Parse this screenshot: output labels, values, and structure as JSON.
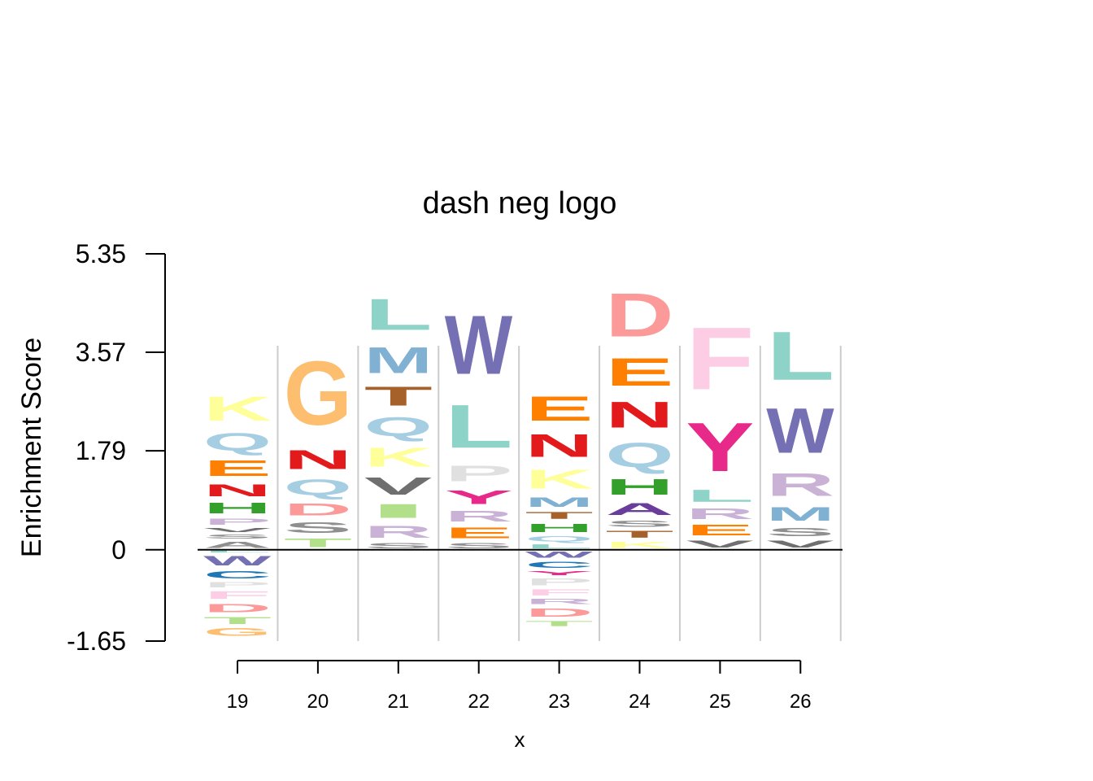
{
  "chart_data": {
    "type": "sequence-logo",
    "title": "dash neg logo",
    "xlabel": "x",
    "ylabel": "Enrichment Score",
    "ylim": [
      -1.65,
      5.35
    ],
    "yticks": [
      "5.35",
      "3.57",
      "1.79",
      "0",
      "-1.65"
    ],
    "ytick_values": [
      5.35,
      3.57,
      1.79,
      0,
      -1.65
    ],
    "positions": [
      {
        "x": "19",
        "positive": [
          {
            "letter": "A",
            "height": 0.18,
            "color": "#8f8f8f"
          },
          {
            "letter": "S",
            "height": 0.12,
            "color": "#8f8f8f"
          },
          {
            "letter": "V",
            "height": 0.12,
            "color": "#6f6f6f"
          },
          {
            "letter": "P",
            "height": 0.18,
            "color": "#cab2d6"
          },
          {
            "letter": "H",
            "height": 0.3,
            "color": "#33a02c"
          },
          {
            "letter": "N",
            "height": 0.35,
            "color": "#e31a1c"
          },
          {
            "letter": "E",
            "height": 0.45,
            "color": "#ff7f00"
          },
          {
            "letter": "Q",
            "height": 0.5,
            "color": "#a6cee3"
          },
          {
            "letter": "K",
            "height": 0.7,
            "color": "#ffff99"
          }
        ],
        "negative": [
          {
            "letter": "L",
            "height": 0.06,
            "color": "#8dd3c7"
          },
          {
            "letter": "W",
            "height": 0.28,
            "color": "#7570b3"
          },
          {
            "letter": "C",
            "height": 0.22,
            "color": "#1f78b4"
          },
          {
            "letter": "P",
            "height": 0.15,
            "color": "#e0e0e0"
          },
          {
            "letter": "F",
            "height": 0.22,
            "color": "#fccde5"
          },
          {
            "letter": "D",
            "height": 0.25,
            "color": "#fb9a99"
          },
          {
            "letter": "T",
            "height": 0.2,
            "color": "#b2df8a"
          },
          {
            "letter": "G",
            "height": 0.22,
            "color": "#fdbf6f"
          }
        ]
      },
      {
        "x": "20",
        "positive": [
          {
            "letter": "T",
            "height": 0.25,
            "color": "#b2df8a"
          },
          {
            "letter": "S",
            "height": 0.3,
            "color": "#8f8f8f"
          },
          {
            "letter": "D",
            "height": 0.35,
            "color": "#fb9a99"
          },
          {
            "letter": "Q",
            "height": 0.45,
            "color": "#a6cee3"
          },
          {
            "letter": "N",
            "height": 0.55,
            "color": "#e31a1c"
          },
          {
            "letter": "G",
            "height": 1.85,
            "color": "#fdbf6f"
          }
        ],
        "negative": []
      },
      {
        "x": "21",
        "positive": [
          {
            "letter": "S",
            "height": 0.15,
            "color": "#8f8f8f"
          },
          {
            "letter": "R",
            "height": 0.35,
            "color": "#cab2d6"
          },
          {
            "letter": "I",
            "height": 0.4,
            "color": "#b2df8a"
          },
          {
            "letter": "V",
            "height": 0.5,
            "color": "#6f6f6f"
          },
          {
            "letter": "K",
            "height": 0.55,
            "color": "#ffff99"
          },
          {
            "letter": "Q",
            "height": 0.55,
            "color": "#a6cee3"
          },
          {
            "letter": "T",
            "height": 0.55,
            "color": "#a6612a"
          },
          {
            "letter": "M",
            "height": 0.75,
            "color": "#80b1d3"
          },
          {
            "letter": "L",
            "height": 0.9,
            "color": "#8dd3c7"
          }
        ],
        "negative": []
      },
      {
        "x": "22",
        "positive": [
          {
            "letter": "S",
            "height": 0.15,
            "color": "#8f8f8f"
          },
          {
            "letter": "E",
            "height": 0.3,
            "color": "#ff7f00"
          },
          {
            "letter": "R",
            "height": 0.3,
            "color": "#cab2d6"
          },
          {
            "letter": "Y",
            "height": 0.4,
            "color": "#e7298a"
          },
          {
            "letter": "P",
            "height": 0.45,
            "color": "#e0e0e0"
          },
          {
            "letter": "L",
            "height": 1.25,
            "color": "#8dd3c7"
          },
          {
            "letter": "W",
            "height": 1.7,
            "color": "#7570b3"
          }
        ],
        "negative": []
      },
      {
        "x": "23",
        "positive": [
          {
            "letter": "L",
            "height": 0.12,
            "color": "#8dd3c7"
          },
          {
            "letter": "Q",
            "height": 0.15,
            "color": "#a6cee3"
          },
          {
            "letter": "H",
            "height": 0.25,
            "color": "#33a02c"
          },
          {
            "letter": "T",
            "height": 0.2,
            "color": "#a6612a"
          },
          {
            "letter": "M",
            "height": 0.28,
            "color": "#80b1d3"
          },
          {
            "letter": "K",
            "height": 0.55,
            "color": "#ffff99"
          },
          {
            "letter": "N",
            "height": 0.65,
            "color": "#e31a1c"
          },
          {
            "letter": "E",
            "height": 0.7,
            "color": "#ff7f00"
          }
        ],
        "negative": [
          {
            "letter": "W",
            "height": 0.18,
            "color": "#7570b3"
          },
          {
            "letter": "C",
            "height": 0.18,
            "color": "#1f78b4"
          },
          {
            "letter": "Y",
            "height": 0.12,
            "color": "#e7298a"
          },
          {
            "letter": "P",
            "height": 0.2,
            "color": "#e0e0e0"
          },
          {
            "letter": "F",
            "height": 0.18,
            "color": "#fccde5"
          },
          {
            "letter": "R",
            "height": 0.15,
            "color": "#cab2d6"
          },
          {
            "letter": "D",
            "height": 0.25,
            "color": "#fb9a99"
          },
          {
            "letter": "T",
            "height": 0.15,
            "color": "#b2df8a"
          }
        ]
      },
      {
        "x": "24",
        "positive": [
          {
            "letter": "K",
            "height": 0.18,
            "color": "#ffff99"
          },
          {
            "letter": "T",
            "height": 0.2,
            "color": "#a6612a"
          },
          {
            "letter": "S",
            "height": 0.18,
            "color": "#8f8f8f"
          },
          {
            "letter": "A",
            "height": 0.35,
            "color": "#6a3d9a"
          },
          {
            "letter": "H",
            "height": 0.45,
            "color": "#33a02c"
          },
          {
            "letter": "Q",
            "height": 0.7,
            "color": "#a6cee3"
          },
          {
            "letter": "N",
            "height": 0.75,
            "color": "#e31a1c"
          },
          {
            "letter": "E",
            "height": 0.8,
            "color": "#ff7f00"
          },
          {
            "letter": "D",
            "height": 1.25,
            "color": "#fb9a99"
          }
        ],
        "negative": []
      },
      {
        "x": "25",
        "positive": [
          {
            "letter": "V",
            "height": 0.2,
            "color": "#6f6f6f"
          },
          {
            "letter": "E",
            "height": 0.3,
            "color": "#ff7f00"
          },
          {
            "letter": "R",
            "height": 0.3,
            "color": "#cab2d6"
          },
          {
            "letter": "L",
            "height": 0.35,
            "color": "#8dd3c7"
          },
          {
            "letter": "Y",
            "height": 1.4,
            "color": "#e7298a"
          },
          {
            "letter": "F",
            "height": 1.8,
            "color": "#fccde5"
          }
        ],
        "negative": []
      },
      {
        "x": "26",
        "positive": [
          {
            "letter": "V",
            "height": 0.2,
            "color": "#6f6f6f"
          },
          {
            "letter": "S",
            "height": 0.25,
            "color": "#8f8f8f"
          },
          {
            "letter": "M",
            "height": 0.4,
            "color": "#80b1d3"
          },
          {
            "letter": "R",
            "height": 0.65,
            "color": "#cab2d6"
          },
          {
            "letter": "W",
            "height": 1.3,
            "color": "#7570b3"
          },
          {
            "letter": "L",
            "height": 1.4,
            "color": "#8dd3c7"
          }
        ],
        "negative": []
      }
    ]
  }
}
